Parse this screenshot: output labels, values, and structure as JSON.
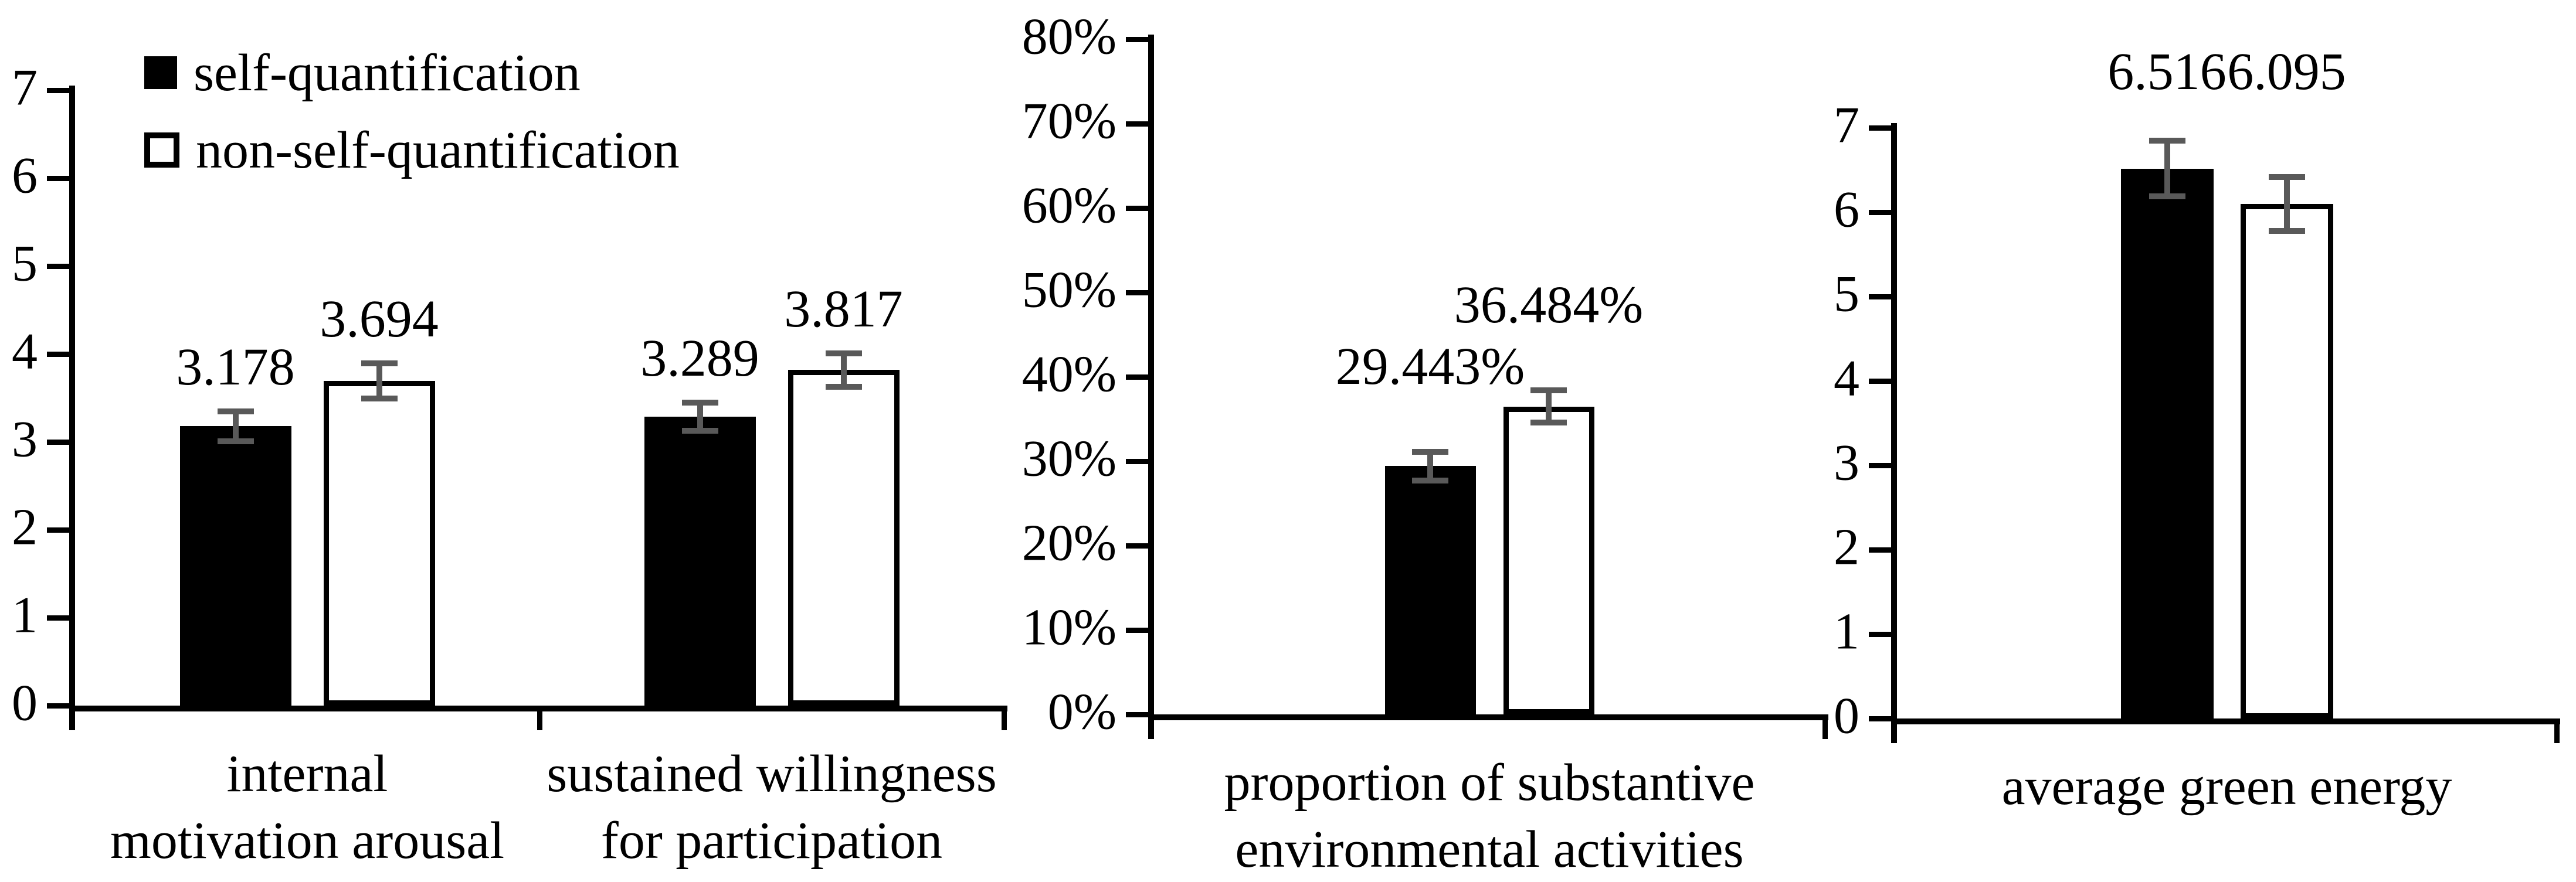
{
  "page": {
    "background": "#ffffff"
  },
  "colors": {
    "bar_filled": "#000000",
    "bar_open_fill": "#ffffff",
    "bar_border": "#000000",
    "error_bar": "#595959",
    "axis": "#000000",
    "text": "#000000"
  },
  "legend": {
    "items": [
      {
        "label": "self-quantification",
        "swatch": "filled"
      },
      {
        "label": "non-self-quantification",
        "swatch": "open"
      }
    ]
  },
  "chart_data": [
    {
      "type": "bar",
      "title": "",
      "xlabel": "",
      "ylabel": "",
      "ylim": [
        0,
        7
      ],
      "grid": false,
      "legend_position": "top-left-inside",
      "yticks": [
        {
          "value": 0,
          "label": "0"
        },
        {
          "value": 1,
          "label": "1"
        },
        {
          "value": 2,
          "label": "2"
        },
        {
          "value": 3,
          "label": "3"
        },
        {
          "value": 4,
          "label": "4"
        },
        {
          "value": 5,
          "label": "5"
        },
        {
          "value": 6,
          "label": "6"
        },
        {
          "value": 7,
          "label": "7"
        }
      ],
      "categories": [
        {
          "lines": [
            "internal",
            "motivation arousal"
          ]
        },
        {
          "lines": [
            "sustained willingness",
            "for participation"
          ]
        }
      ],
      "series": [
        {
          "name": "self-quantification",
          "values": [
            3.178,
            3.289
          ],
          "value_labels": [
            "3.178",
            "3.289"
          ],
          "errors": [
            0.17,
            0.16
          ]
        },
        {
          "name": "non-self-quantification",
          "values": [
            3.694,
            3.817
          ],
          "value_labels": [
            "3.694",
            "3.817"
          ],
          "errors": [
            0.2,
            0.19
          ]
        }
      ]
    },
    {
      "type": "bar",
      "title": "",
      "xlabel": "",
      "ylabel": "",
      "ylim": [
        0,
        80
      ],
      "grid": false,
      "yticks": [
        {
          "value": 0,
          "label": "0%"
        },
        {
          "value": 10,
          "label": "10%"
        },
        {
          "value": 20,
          "label": "20%"
        },
        {
          "value": 30,
          "label": "30%"
        },
        {
          "value": 40,
          "label": "40%"
        },
        {
          "value": 50,
          "label": "50%"
        },
        {
          "value": 60,
          "label": "60%"
        },
        {
          "value": 70,
          "label": "70%"
        },
        {
          "value": 80,
          "label": "80%"
        }
      ],
      "categories": [
        {
          "lines": [
            "proportion of substantive",
            "environmental activities"
          ]
        }
      ],
      "series": [
        {
          "name": "self-quantification",
          "values": [
            29.443
          ],
          "value_labels": [
            "29.443%"
          ],
          "errors": [
            1.7
          ]
        },
        {
          "name": "non-self-quantification",
          "values": [
            36.484
          ],
          "value_labels": [
            "36.484%"
          ],
          "errors": [
            1.9
          ]
        }
      ]
    },
    {
      "type": "bar",
      "title": "",
      "xlabel": "",
      "ylabel": "",
      "ylim": [
        0,
        7
      ],
      "grid": false,
      "value_label_level": 7.35,
      "yticks": [
        {
          "value": 0,
          "label": "0"
        },
        {
          "value": 1,
          "label": "1"
        },
        {
          "value": 2,
          "label": "2"
        },
        {
          "value": 3,
          "label": "3"
        },
        {
          "value": 4,
          "label": "4"
        },
        {
          "value": 5,
          "label": "5"
        },
        {
          "value": 6,
          "label": "6"
        },
        {
          "value": 7,
          "label": "7"
        }
      ],
      "categories": [
        {
          "lines": [
            "average green energy"
          ]
        }
      ],
      "series": [
        {
          "name": "self-quantification",
          "values": [
            6.516
          ],
          "value_labels": [
            "6.516"
          ],
          "errors": [
            0.33
          ]
        },
        {
          "name": "non-self-quantification",
          "values": [
            6.095
          ],
          "value_labels": [
            "6.095"
          ],
          "errors": [
            0.32
          ]
        }
      ]
    }
  ]
}
